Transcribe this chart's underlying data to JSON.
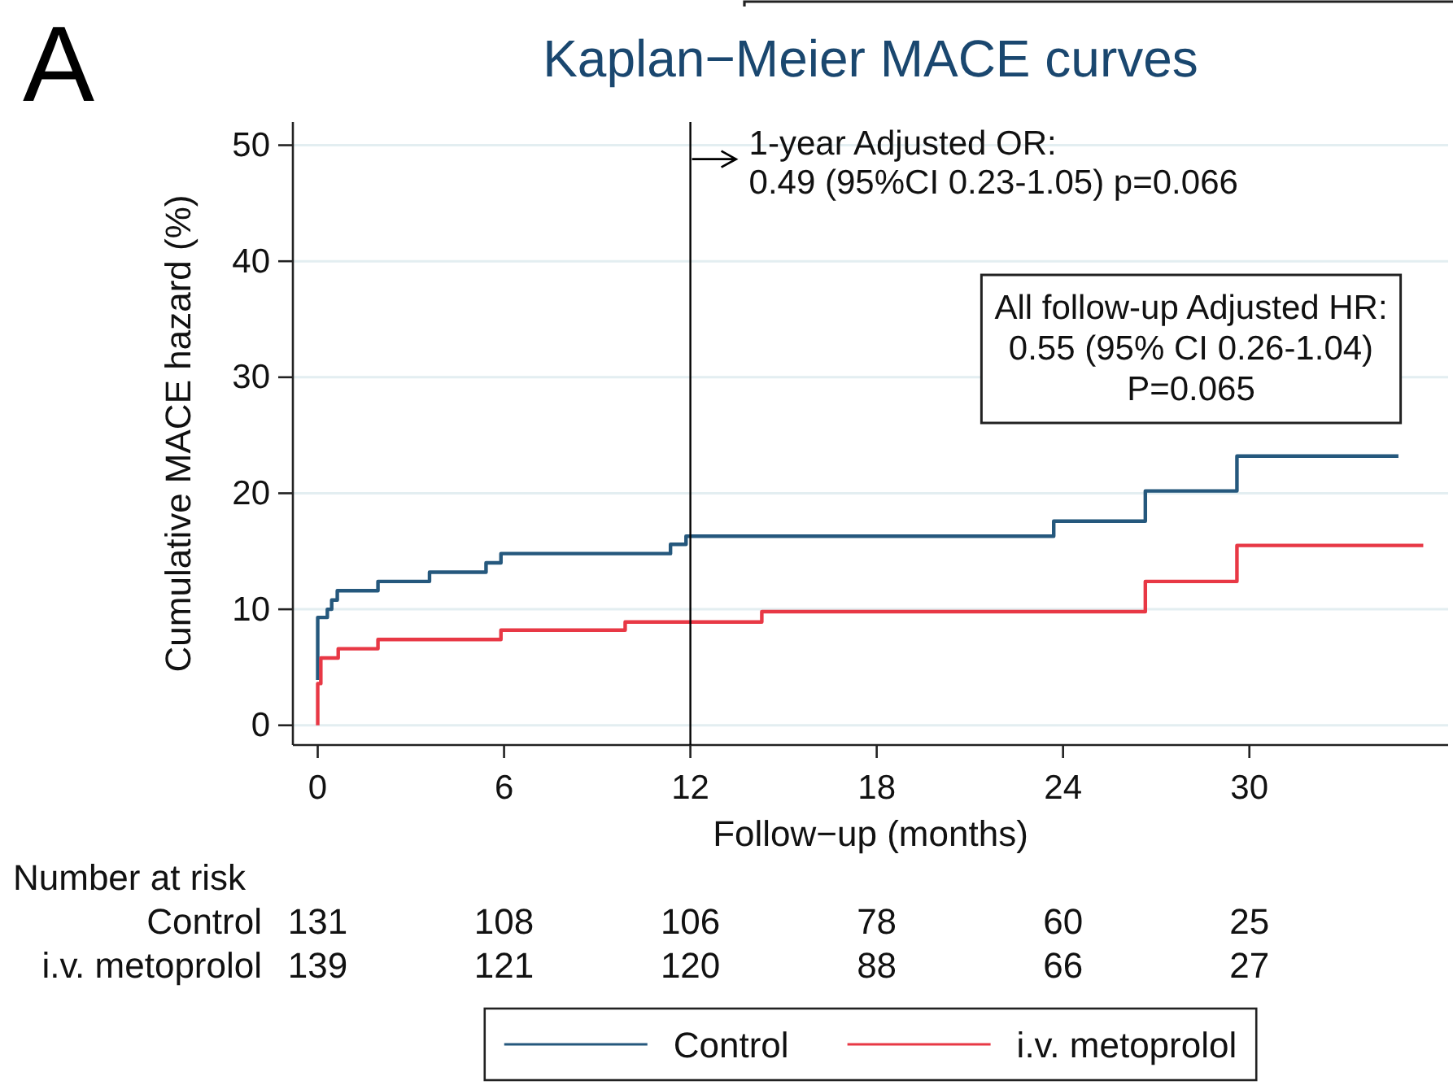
{
  "chart_data": {
    "type": "step",
    "title": "Kaplan−Meier MACE curves",
    "xlabel": "Follow−up (months)",
    "ylabel": "Cumulative MACE hazard (%)",
    "xlim": [
      -0.8,
      36.4
    ],
    "xticks": [
      0,
      6,
      12,
      18,
      24,
      30
    ],
    "ylim": [
      -1.7,
      52
    ],
    "yticks": [
      0,
      10,
      20,
      30,
      40,
      50
    ],
    "grid": "y",
    "legend": "bottom",
    "series": [
      {
        "name": "Control",
        "color": "#25587d",
        "x": [
          0,
          0,
          0.31,
          0.45,
          0.63,
          1.94,
          3.6,
          5.42,
          5.9,
          11.36,
          11.86,
          23.7,
          26.65,
          29.6,
          34.8
        ],
        "values": [
          3.9,
          9.3,
          10.0,
          10.8,
          11.6,
          12.4,
          13.2,
          14.0,
          14.8,
          15.6,
          16.3,
          17.6,
          20.2,
          23.2,
          23.2
        ]
      },
      {
        "name": "i.v. metoprolol",
        "color": "#e83845",
        "x": [
          0,
          0,
          0.1,
          0.66,
          1.94,
          5.9,
          9.9,
          14.3,
          26.65,
          29.6,
          35.6
        ],
        "values": [
          0,
          3.6,
          5.8,
          6.6,
          7.4,
          8.2,
          8.9,
          9.8,
          12.4,
          15.5,
          15.5
        ]
      }
    ],
    "ref_lines": [
      {
        "axis": "x",
        "value": 12,
        "color": "#000000"
      }
    ],
    "annotations": [
      "A",
      {
        "text": "1-year Adjusted OR:\n0.49 (95%CI 0.23-1.05) p=0.066",
        "x": 12,
        "y": 48.8
      },
      "All follow-up Adjusted HR:\n0.55 (95% CI 0.26-1.04)\nP=0.065",
      "Number at risk",
      "Control\t131\t108\t106\t78\t60\t25",
      "i.v. metoprolol\t139\t121\t120\t88\t66\t27"
    ]
  }
}
